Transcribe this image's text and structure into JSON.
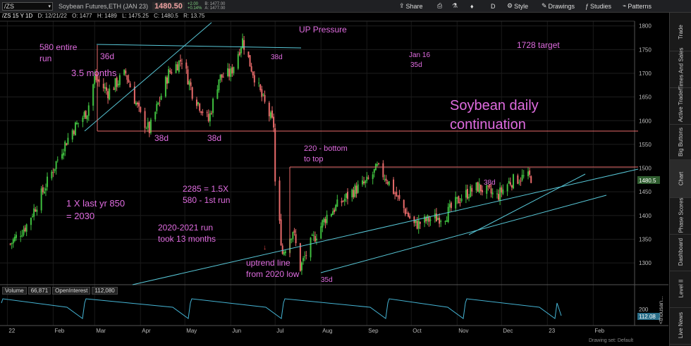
{
  "header": {
    "symbol": "/ZS",
    "description": "Soybean Futures,ETH (JAN 23)",
    "last": "1480.50",
    "change": "+2.00",
    "change_pct": "+0.14%",
    "bid": "B: 1477.00",
    "ask": "A: 1477.00",
    "tool_share": "Share",
    "tool_d": "D",
    "tool_style": "Style",
    "tool_drawings": "Drawings",
    "tool_studies": "Studies",
    "tool_patterns": "Patterns"
  },
  "subheader": {
    "title": "/ZS 15 Y 1D",
    "date": "D: 12/21/22",
    "open": "O: 1477",
    "high": "H: 1489",
    "low": "L: 1475.25",
    "close": "C: 1480.5",
    "range": "R: 13.75"
  },
  "right_tabs": [
    "Trade",
    "Times And Sales",
    "Active Trader",
    "Big Buttons",
    "Chart",
    "Phase Scores",
    "Dashboard",
    "Level II",
    "Live News"
  ],
  "volume_panel": {
    "volume_label": "Volume",
    "volume_value": "66,871",
    "oi_label": "OpenInterest",
    "oi_value": "112,080",
    "tick_200": "200",
    "oi_badge": "112.08",
    "unit": "<thousan..."
  },
  "annotations": {
    "a580": "580 entire",
    "a580b": "run",
    "a36d": "36d",
    "months": "3.5 months",
    "b38d1": "38d",
    "b38d2": "38d",
    "peak38": "38d",
    "up_pressure": "UP Pressure",
    "jan16": "Jan 16",
    "jan35": "35d",
    "target": "1728 target",
    "title1": "Soybean daily",
    "title2": "continuation",
    "bottom1": "220 - bottom",
    "bottom2": "to top",
    "r2285": "2285 = 1.5X",
    "r580": "580 - 1st run",
    "onex1": "1 X last yr 850",
    "onex2": "= 2030",
    "run1": "2020-2021 run",
    "run2": "took 13 months",
    "up1": "uptrend line",
    "up2": "from 2020 low",
    "low35": "35d",
    "nov38": "38d"
  },
  "drawing_set": "Drawing set: Default",
  "chart_data": {
    "type": "candlestick",
    "ylim": [
      1260,
      1810
    ],
    "y_ticks": [
      1300,
      1350,
      1400,
      1450,
      1500,
      1550,
      1600,
      1650,
      1700,
      1750,
      1800
    ],
    "x_ticks": [
      "22",
      "Feb",
      "Mar",
      "Apr",
      "May",
      "Jun",
      "Jul",
      "Aug",
      "Sep",
      "Oct",
      "Nov",
      "Dec",
      "23",
      "Feb"
    ],
    "last_price_tag": "1480.5",
    "price_path": [
      [
        "2022-01-03",
        1340
      ],
      [
        "2022-01-14",
        1380
      ],
      [
        "2022-01-28",
        1470
      ],
      [
        "2022-02-07",
        1540
      ],
      [
        "2022-02-14",
        1580
      ],
      [
        "2022-02-24",
        1620
      ],
      [
        "2022-03-01",
        1690
      ],
      [
        "2022-03-10",
        1660
      ],
      [
        "2022-03-22",
        1700
      ],
      [
        "2022-04-01",
        1610
      ],
      [
        "2022-04-07",
        1580
      ],
      [
        "2022-04-20",
        1700
      ],
      [
        "2022-04-29",
        1730
      ],
      [
        "2022-05-06",
        1660
      ],
      [
        "2022-05-17",
        1600
      ],
      [
        "2022-05-24",
        1690
      ],
      [
        "2022-06-01",
        1700
      ],
      [
        "2022-06-09",
        1770
      ],
      [
        "2022-06-14",
        1720
      ],
      [
        "2022-06-22",
        1650
      ],
      [
        "2022-06-30",
        1590
      ],
      [
        "2022-07-01",
        1470
      ],
      [
        "2022-07-06",
        1320
      ],
      [
        "2022-07-13",
        1370
      ],
      [
        "2022-07-18",
        1290
      ],
      [
        "2022-07-25",
        1340
      ],
      [
        "2022-08-05",
        1400
      ],
      [
        "2022-08-22",
        1450
      ],
      [
        "2022-09-01",
        1470
      ],
      [
        "2022-09-08",
        1500
      ],
      [
        "2022-09-14",
        1480
      ],
      [
        "2022-09-23",
        1430
      ],
      [
        "2022-10-03",
        1380
      ],
      [
        "2022-10-12",
        1390
      ],
      [
        "2022-10-24",
        1400
      ],
      [
        "2022-11-04",
        1440
      ],
      [
        "2022-11-15",
        1460
      ],
      [
        "2022-11-28",
        1440
      ],
      [
        "2022-12-06",
        1470
      ],
      [
        "2022-12-14",
        1480
      ],
      [
        "2022-12-21",
        1480.5
      ]
    ]
  }
}
